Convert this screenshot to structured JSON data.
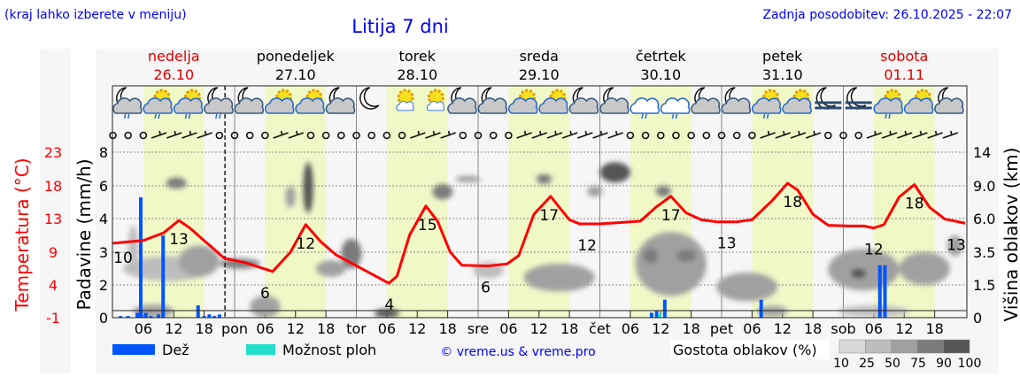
{
  "header": {
    "menu_hint": "(kraj lahko izberete v meniju)",
    "title": "Litija 7 dni",
    "updated": "Zadnja posodobitev: 26.10.2025 - 22:07"
  },
  "colors": {
    "link": "#0000ff",
    "temp": "#ff0000",
    "rain": "#0055ff",
    "shower": "#22ddcc",
    "dayband": "#f0f8c8",
    "weekend": "#dd0000"
  },
  "chart_data": {
    "type": "line",
    "title": "Litija 7 dni",
    "hours_total": 168,
    "days": [
      {
        "name": "nedelja",
        "date": "26.10",
        "weekend": true,
        "abbr": ""
      },
      {
        "name": "ponedeljek",
        "date": "27.10",
        "weekend": false,
        "abbr": "pon"
      },
      {
        "name": "torek",
        "date": "28.10",
        "weekend": false,
        "abbr": "tor"
      },
      {
        "name": "sreda",
        "date": "29.10",
        "weekend": false,
        "abbr": "sre"
      },
      {
        "name": "četrtek",
        "date": "30.10",
        "weekend": false,
        "abbr": "čet"
      },
      {
        "name": "petek",
        "date": "31.10",
        "weekend": false,
        "abbr": "pet"
      },
      {
        "name": "sobota",
        "date": "01.11",
        "weekend": true,
        "abbr": "sob"
      }
    ],
    "hour_ticks": [
      "06",
      "12",
      "18"
    ],
    "now_hour": 22.1,
    "axes": {
      "temp_label": "Temperatura (°C)",
      "temp_ticks": [
        "23",
        "18",
        "13",
        "9",
        "4",
        "-1"
      ],
      "temp_range": [
        -1,
        23
      ],
      "rain_label": "Padavine (mm/h)",
      "rain_ticks": [
        "8",
        "6",
        "4",
        "3",
        "2",
        "0"
      ],
      "rain_tick_values": [
        0,
        2,
        3,
        4,
        6,
        8
      ],
      "cloud_label": "Višina oblakov (km)",
      "cloud_ticks": [
        "14",
        "9.0",
        "6.0",
        "3.5",
        "1.5",
        "0"
      ],
      "cloud_tick_values": [
        0,
        1.5,
        3.5,
        6.0,
        9.0,
        14
      ]
    },
    "temperature": [
      [
        0,
        9.8
      ],
      [
        6,
        10.2
      ],
      [
        10,
        11.3
      ],
      [
        13,
        13.1
      ],
      [
        15,
        12.1
      ],
      [
        22,
        7.6
      ],
      [
        26,
        7
      ],
      [
        31.5,
        5.7
      ],
      [
        35,
        8.5
      ],
      [
        38,
        12.5
      ],
      [
        41,
        10
      ],
      [
        44,
        8.1
      ],
      [
        54.4,
        4
      ],
      [
        56,
        5
      ],
      [
        58.5,
        11
      ],
      [
        61.7,
        15.2
      ],
      [
        64,
        13
      ],
      [
        66.5,
        8.5
      ],
      [
        68.8,
        6.6
      ],
      [
        74,
        6.5
      ],
      [
        77.7,
        6.8
      ],
      [
        80,
        8
      ],
      [
        83,
        14
      ],
      [
        86.3,
        16.6
      ],
      [
        88,
        15
      ],
      [
        90,
        13.2
      ],
      [
        92,
        12.6
      ],
      [
        96,
        12.6
      ],
      [
        100,
        12.8
      ],
      [
        104,
        13
      ],
      [
        107,
        15
      ],
      [
        110,
        16.6
      ],
      [
        113,
        14.2
      ],
      [
        116,
        13.2
      ],
      [
        119,
        12.9
      ],
      [
        123,
        12.9
      ],
      [
        126,
        13.2
      ],
      [
        130,
        16
      ],
      [
        133,
        18.5
      ],
      [
        135,
        17.5
      ],
      [
        138,
        14
      ],
      [
        141,
        12.4
      ],
      [
        145,
        12.3
      ],
      [
        148,
        12.3
      ],
      [
        150,
        12
      ],
      [
        152,
        12.5
      ],
      [
        155,
        16.5
      ],
      [
        158,
        18.3
      ],
      [
        161,
        15
      ],
      [
        164,
        13.3
      ],
      [
        168,
        12.7
      ]
    ],
    "temp_labels": [
      {
        "h": 0.5,
        "t": "10"
      },
      {
        "h": 13,
        "t": "13"
      },
      {
        "h": 30,
        "t": "6"
      },
      {
        "h": 38,
        "t": "12"
      },
      {
        "h": 54.5,
        "t": "4"
      },
      {
        "h": 62,
        "t": "15"
      },
      {
        "h": 73.5,
        "t": "6"
      },
      {
        "h": 86,
        "t": "17"
      },
      {
        "h": 93.5,
        "t": "12"
      },
      {
        "h": 110,
        "t": "17"
      },
      {
        "h": 121,
        "t": "13"
      },
      {
        "h": 134,
        "t": "18"
      },
      {
        "h": 150,
        "t": "12"
      },
      {
        "h": 158,
        "t": "18"
      },
      {
        "h": 167,
        "t": "13"
      }
    ],
    "rain": [
      [
        1.5,
        0.1
      ],
      [
        3,
        0.1
      ],
      [
        4.8,
        0.3
      ],
      [
        5.5,
        5.3
      ],
      [
        6.5,
        0.3
      ],
      [
        7.5,
        0.1
      ],
      [
        9,
        0.2
      ],
      [
        9.9,
        3.5
      ],
      [
        16.8,
        0.75
      ],
      [
        18,
        0.1
      ],
      [
        19,
        0.2
      ],
      [
        20,
        0.1
      ],
      [
        21,
        0.2
      ],
      [
        106.2,
        0.3
      ],
      [
        107.2,
        0.4
      ],
      [
        108.8,
        1.1
      ],
      [
        127.8,
        1.1
      ],
      [
        151.2,
        2.6
      ],
      [
        152.2,
        2.6
      ]
    ],
    "showers": [
      [
        107.8,
        0.25
      ]
    ],
    "clouds": [
      [
        11,
        2.5,
        18,
        1.5,
        25
      ],
      [
        17,
        3,
        8,
        2,
        50
      ],
      [
        25,
        2.8,
        8,
        0.6,
        75
      ],
      [
        4,
        4,
        2,
        3,
        25
      ],
      [
        12.5,
        9.5,
        4,
        1.5,
        75
      ],
      [
        8,
        0.3,
        8,
        0.6,
        50
      ],
      [
        30,
        0.5,
        6,
        1,
        50
      ],
      [
        35,
        8,
        2,
        2,
        50
      ],
      [
        38.5,
        9.5,
        2,
        6,
        90
      ],
      [
        47,
        3.5,
        4,
        2,
        75
      ],
      [
        43,
        2.5,
        6,
        1,
        50
      ],
      [
        54,
        0.2,
        5,
        0.4,
        90
      ],
      [
        65,
        8.5,
        4,
        1.5,
        75
      ],
      [
        70,
        10,
        5,
        1,
        50
      ],
      [
        74,
        2.4,
        6,
        1,
        25
      ],
      [
        88,
        2,
        14,
        1.6,
        50
      ],
      [
        85,
        10,
        3,
        1.5,
        75
      ],
      [
        99,
        11,
        6,
        3,
        90
      ],
      [
        95,
        8.5,
        3,
        1,
        50
      ],
      [
        110,
        3,
        14,
        4,
        50
      ],
      [
        113,
        3.3,
        4,
        0.8,
        75
      ],
      [
        106,
        3.3,
        3,
        1,
        75
      ],
      [
        108.5,
        8.5,
        3,
        1,
        75
      ],
      [
        125,
        1.5,
        12,
        1.5,
        50
      ],
      [
        130,
        0.3,
        6,
        0.5,
        50
      ],
      [
        148,
        2.5,
        14,
        2.5,
        50
      ],
      [
        147,
        2.2,
        3,
        0.6,
        90
      ],
      [
        150,
        0.3,
        14,
        0.5,
        25
      ],
      [
        160,
        2.5,
        10,
        2,
        50
      ],
      [
        166,
        4,
        3,
        1.5,
        50
      ]
    ],
    "icons": [
      "moon-cloud-rain",
      "sun-cloud-rain",
      "sun-cloud-rain",
      "moon-cloud-rain",
      "moon-cloud",
      "sun-cloud",
      "sun-cloud",
      "moon-cloud",
      "moon",
      "sun-small-cloud",
      "sun-small-cloud",
      "moon-cloud",
      "moon-cloud",
      "sun-cloud",
      "sun-cloud",
      "moon-cloud",
      "moon-cloud",
      "cloud-rain",
      "cloud-rain",
      "moon-cloud",
      "moon-cloud",
      "sun-cloud-rain",
      "sun-cloud",
      "moon-fog",
      "moon-fog",
      "sun-cloud-rain",
      "sun-cloud",
      "moon-cloud"
    ],
    "wind": [
      "c",
      "c",
      "c",
      "b",
      "b",
      "b",
      "b",
      "c",
      "c",
      "c",
      "c",
      "b",
      "b",
      "c",
      "c",
      "c",
      "c",
      "c",
      "c",
      "c",
      "b",
      "b",
      "b",
      "c",
      "c",
      "c",
      "c",
      "b",
      "b",
      "b",
      "b",
      "b",
      "b",
      "b",
      "c",
      "c",
      "c",
      "c",
      "c",
      "c",
      "c",
      "c",
      "c",
      "b",
      "b",
      "b",
      "b",
      "c",
      "c",
      "c",
      "b",
      "b",
      "b",
      "b",
      "b",
      "b"
    ]
  },
  "legend": {
    "rain": "Dež",
    "shower": "Možnost ploh",
    "copyright": "© vreme.us & vreme.pro",
    "cloud_density": "Gostota oblakov (%)",
    "density_ticks": [
      "10",
      "25",
      "50",
      "75",
      "90",
      "100"
    ],
    "density_colors": [
      "#d8d8d8",
      "#bdbdbd",
      "#a0a0a0",
      "#7c7c7c",
      "#555555"
    ]
  }
}
